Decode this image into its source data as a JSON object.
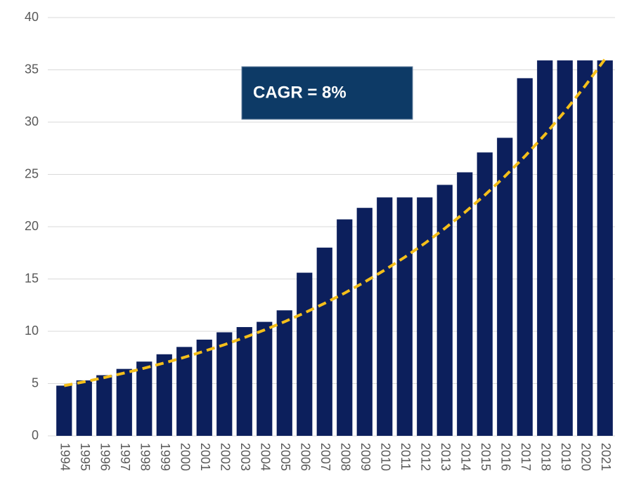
{
  "chart_data": {
    "type": "bar",
    "categories": [
      "1994",
      "1995",
      "1996",
      "1997",
      "1998",
      "1999",
      "2000",
      "2001",
      "2002",
      "2003",
      "2004",
      "2005",
      "2006",
      "2007",
      "2008",
      "2009",
      "2010",
      "2011",
      "2012",
      "2013",
      "2014",
      "2015",
      "2016",
      "2017",
      "2018",
      "2019",
      "2020",
      "2021"
    ],
    "values": [
      4.8,
      5.3,
      5.8,
      6.4,
      7.1,
      7.8,
      8.5,
      9.2,
      9.9,
      10.4,
      10.9,
      12.0,
      15.6,
      18.0,
      20.7,
      21.8,
      22.8,
      22.8,
      22.8,
      24.0,
      25.2,
      27.1,
      28.5,
      34.2,
      35.9,
      35.9,
      35.9,
      35.9
    ],
    "color": "#0c1f5c",
    "trend": {
      "color": "#f5bf1a",
      "values": [
        4.8,
        5.17,
        5.57,
        6.01,
        6.47,
        6.97,
        7.51,
        8.1,
        8.72,
        9.4,
        10.13,
        10.91,
        11.76,
        12.67,
        13.65,
        14.71,
        15.85,
        17.08,
        18.4,
        19.83,
        21.37,
        23.02,
        24.81,
        26.73,
        28.8,
        31.04,
        33.44,
        36.03
      ]
    },
    "annotation": "CAGR = 8%",
    "ylim": [
      0,
      40
    ],
    "yticks": [
      0,
      5,
      10,
      15,
      20,
      25,
      30,
      35,
      40
    ],
    "grid": true
  }
}
